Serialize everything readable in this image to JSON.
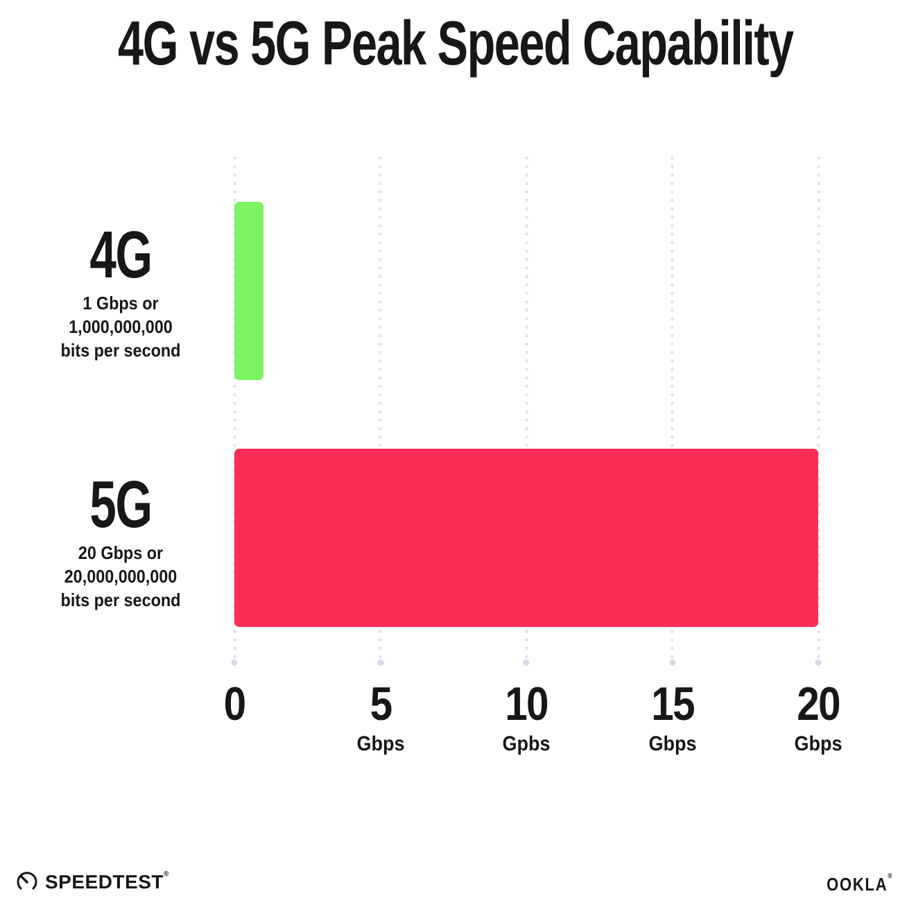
{
  "title": "4G vs 5G Peak Speed Capability",
  "chart_data": {
    "type": "bar",
    "orientation": "horizontal",
    "title": "4G vs 5G Peak Speed Capability",
    "categories": [
      "4G",
      "5G"
    ],
    "values": [
      1,
      20
    ],
    "value_unit": "Gbps",
    "xlim": [
      0,
      20
    ],
    "x_tick_values": [
      0,
      5,
      10,
      15,
      20
    ],
    "x_ticks": [
      {
        "label": "0",
        "unit": ""
      },
      {
        "label": "5",
        "unit": "Gbps"
      },
      {
        "label": "10",
        "unit": "Gpbs"
      },
      {
        "label": "15",
        "unit": "Gbps"
      },
      {
        "label": "20",
        "unit": "Gbps"
      }
    ],
    "rows": [
      {
        "label": "4G",
        "value": 1,
        "color": "#7CF463",
        "sublabel_lines": [
          "1 Gbps or",
          "1,000,000,000",
          "bits per second"
        ]
      },
      {
        "label": "5G",
        "value": 20,
        "color": "#FC2D56",
        "sublabel_lines": [
          "20 Gbps or",
          "20,000,000,000",
          "bits per second"
        ]
      }
    ],
    "grid": {
      "style": "dotted",
      "direction": "vertical",
      "color": "#E3E3EF",
      "end_dot_color": "#D9D9E6"
    },
    "legend": "none",
    "background": "#FFFFFF",
    "text_color": "#171717"
  },
  "footer": {
    "speedtest_label": "SPEEDTEST",
    "speedtest_mark": "®",
    "ookla_label": "OOKLA",
    "ookla_mark": "®"
  }
}
